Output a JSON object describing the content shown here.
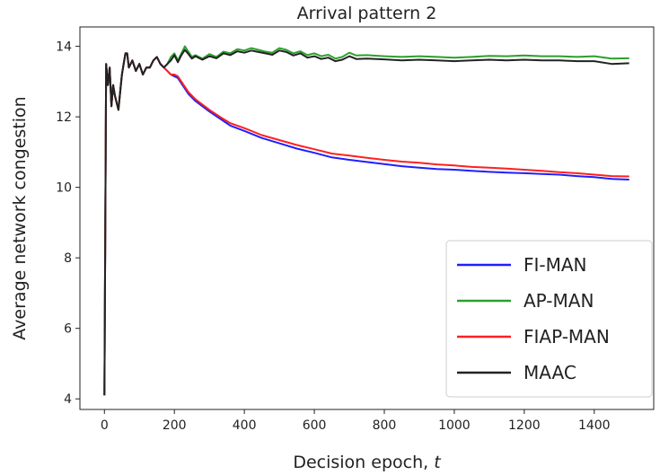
{
  "chart_data": {
    "type": "line",
    "title": "Arrival pattern 2",
    "xlabel": "Decision epoch, t",
    "ylabel": "Average network congestion",
    "xlim": [
      -70,
      1570
    ],
    "ylim": [
      3.7,
      14.55
    ],
    "xticks": [
      0,
      200,
      400,
      600,
      800,
      1000,
      1200,
      1400
    ],
    "yticks": [
      4,
      6,
      8,
      10,
      12,
      14
    ],
    "grid": false,
    "legend_position": "lower-right",
    "series": [
      {
        "name": "FI-MAN",
        "color": "#1f1fff",
        "x": [
          0,
          5,
          10,
          15,
          20,
          25,
          30,
          35,
          40,
          45,
          50,
          55,
          60,
          65,
          70,
          80,
          90,
          100,
          110,
          120,
          130,
          140,
          150,
          160,
          170,
          180,
          190,
          200,
          210,
          220,
          230,
          240,
          260,
          280,
          300,
          330,
          360,
          400,
          450,
          500,
          550,
          600,
          650,
          700,
          750,
          800,
          850,
          900,
          950,
          1000,
          1050,
          1100,
          1150,
          1200,
          1250,
          1300,
          1350,
          1400,
          1450,
          1500
        ],
        "y": [
          4.1,
          13.5,
          12.9,
          13.4,
          12.3,
          12.9,
          12.6,
          12.4,
          12.2,
          12.7,
          13.2,
          13.5,
          13.8,
          13.8,
          13.4,
          13.6,
          13.3,
          13.5,
          13.2,
          13.4,
          13.4,
          13.6,
          13.7,
          13.5,
          13.4,
          13.3,
          13.2,
          13.15,
          13.1,
          12.95,
          12.8,
          12.65,
          12.45,
          12.3,
          12.15,
          11.95,
          11.75,
          11.6,
          11.4,
          11.25,
          11.1,
          10.98,
          10.85,
          10.78,
          10.72,
          10.66,
          10.6,
          10.56,
          10.52,
          10.5,
          10.47,
          10.44,
          10.42,
          10.4,
          10.38,
          10.36,
          10.32,
          10.29,
          10.24,
          10.22
        ]
      },
      {
        "name": "AP-MAN",
        "color": "#2ca02c",
        "x": [
          0,
          5,
          10,
          15,
          20,
          25,
          30,
          35,
          40,
          45,
          50,
          55,
          60,
          65,
          70,
          80,
          90,
          100,
          110,
          120,
          130,
          140,
          150,
          160,
          170,
          180,
          190,
          200,
          210,
          220,
          230,
          240,
          250,
          260,
          280,
          300,
          320,
          340,
          360,
          380,
          400,
          420,
          440,
          460,
          480,
          500,
          520,
          540,
          560,
          580,
          600,
          620,
          640,
          660,
          680,
          700,
          720,
          750,
          800,
          850,
          900,
          950,
          1000,
          1050,
          1100,
          1150,
          1200,
          1250,
          1300,
          1350,
          1400,
          1450,
          1500
        ],
        "y": [
          4.1,
          13.5,
          12.9,
          13.4,
          12.3,
          12.9,
          12.6,
          12.4,
          12.2,
          12.7,
          13.2,
          13.5,
          13.8,
          13.8,
          13.4,
          13.6,
          13.3,
          13.5,
          13.2,
          13.4,
          13.4,
          13.6,
          13.7,
          13.5,
          13.4,
          13.5,
          13.7,
          13.8,
          13.6,
          13.8,
          14.0,
          13.85,
          13.7,
          13.75,
          13.65,
          13.78,
          13.7,
          13.85,
          13.8,
          13.92,
          13.88,
          13.95,
          13.9,
          13.85,
          13.82,
          13.95,
          13.9,
          13.8,
          13.86,
          13.75,
          13.8,
          13.72,
          13.76,
          13.65,
          13.7,
          13.82,
          13.74,
          13.75,
          13.72,
          13.7,
          13.72,
          13.7,
          13.68,
          13.7,
          13.73,
          13.72,
          13.74,
          13.72,
          13.72,
          13.7,
          13.72,
          13.65,
          13.66
        ]
      },
      {
        "name": "FIAP-MAN",
        "color": "#ff2020",
        "x": [
          0,
          5,
          10,
          15,
          20,
          25,
          30,
          35,
          40,
          45,
          50,
          55,
          60,
          65,
          70,
          80,
          90,
          100,
          110,
          120,
          130,
          140,
          150,
          160,
          170,
          180,
          190,
          200,
          210,
          220,
          230,
          240,
          260,
          280,
          300,
          330,
          360,
          400,
          450,
          500,
          550,
          600,
          650,
          700,
          750,
          800,
          850,
          900,
          950,
          1000,
          1050,
          1100,
          1150,
          1200,
          1250,
          1300,
          1350,
          1400,
          1450,
          1500
        ],
        "y": [
          4.1,
          13.5,
          12.9,
          13.4,
          12.3,
          12.9,
          12.6,
          12.4,
          12.2,
          12.7,
          13.2,
          13.5,
          13.8,
          13.8,
          13.4,
          13.6,
          13.3,
          13.5,
          13.2,
          13.4,
          13.4,
          13.6,
          13.7,
          13.5,
          13.4,
          13.3,
          13.2,
          13.2,
          13.15,
          13.0,
          12.85,
          12.7,
          12.5,
          12.35,
          12.2,
          12.0,
          11.82,
          11.68,
          11.48,
          11.34,
          11.2,
          11.08,
          10.96,
          10.9,
          10.84,
          10.78,
          10.73,
          10.7,
          10.65,
          10.62,
          10.58,
          10.56,
          10.53,
          10.5,
          10.47,
          10.43,
          10.4,
          10.36,
          10.32,
          10.31
        ]
      },
      {
        "name": "MAAC",
        "color": "#222222",
        "x": [
          0,
          5,
          10,
          15,
          20,
          25,
          30,
          35,
          40,
          45,
          50,
          55,
          60,
          65,
          70,
          80,
          90,
          100,
          110,
          120,
          130,
          140,
          150,
          160,
          170,
          180,
          190,
          200,
          210,
          220,
          230,
          240,
          250,
          260,
          280,
          300,
          320,
          340,
          360,
          380,
          400,
          420,
          440,
          460,
          480,
          500,
          520,
          540,
          560,
          580,
          600,
          620,
          640,
          660,
          680,
          700,
          720,
          750,
          800,
          850,
          900,
          950,
          1000,
          1050,
          1100,
          1150,
          1200,
          1250,
          1300,
          1350,
          1400,
          1450,
          1500
        ],
        "y": [
          4.1,
          13.5,
          12.9,
          13.4,
          12.3,
          12.9,
          12.6,
          12.4,
          12.2,
          12.7,
          13.2,
          13.5,
          13.8,
          13.8,
          13.4,
          13.6,
          13.3,
          13.5,
          13.2,
          13.4,
          13.4,
          13.6,
          13.7,
          13.5,
          13.4,
          13.5,
          13.6,
          13.75,
          13.55,
          13.75,
          13.9,
          13.78,
          13.65,
          13.72,
          13.62,
          13.72,
          13.66,
          13.8,
          13.75,
          13.86,
          13.82,
          13.88,
          13.84,
          13.8,
          13.76,
          13.88,
          13.84,
          13.74,
          13.8,
          13.68,
          13.72,
          13.64,
          13.68,
          13.58,
          13.62,
          13.72,
          13.64,
          13.65,
          13.63,
          13.6,
          13.62,
          13.6,
          13.58,
          13.6,
          13.62,
          13.6,
          13.62,
          13.6,
          13.6,
          13.58,
          13.58,
          13.5,
          13.52
        ]
      }
    ]
  }
}
